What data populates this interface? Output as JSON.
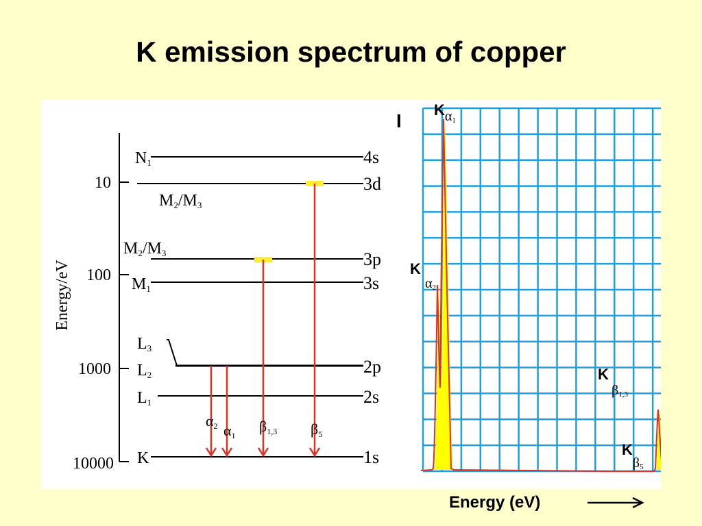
{
  "title": "K emission spectrum of copper",
  "energy_diagram": {
    "axis_label": "Energy/eV",
    "ticks": [
      "10",
      "100",
      "1000",
      "10000"
    ],
    "levels": [
      {
        "shell": "N",
        "sub": "1",
        "orbital": "4s"
      },
      {
        "shell": "M",
        "sub": "2",
        "shell2": "M",
        "sub2": "3",
        "orbital": "3d"
      },
      {
        "shell": "M",
        "sub": "2",
        "shell2": "M",
        "sub2": "3",
        "orbital": "3p"
      },
      {
        "shell": "M",
        "sub": "1",
        "orbital": "3s"
      },
      {
        "shell": "L",
        "sub": "3",
        "orbital": ""
      },
      {
        "shell": "L",
        "sub": "2",
        "orbital": "2p"
      },
      {
        "shell": "L",
        "sub": "1",
        "orbital": "2s"
      },
      {
        "shell": "K",
        "sub": "",
        "orbital": "1s"
      }
    ],
    "transitions": [
      {
        "greek": "α",
        "sub": "2",
        "from": "L2",
        "to": "K"
      },
      {
        "greek": "α",
        "sub": "1",
        "from": "L3",
        "to": "K"
      },
      {
        "greek": "β",
        "sub": "1,3",
        "from": "M2/M3",
        "to": "K"
      },
      {
        "greek": "β",
        "sub": "5",
        "from": "M2/M3",
        "to": "K"
      }
    ]
  },
  "spectrum": {
    "y_label": "I",
    "x_label": "Energy (eV)",
    "peaks": [
      {
        "letter": "K",
        "greek": "α",
        "sub": "1",
        "relative_intensity": 1.0
      },
      {
        "letter": "K",
        "greek": "α",
        "sub": "2",
        "relative_intensity": 0.5
      },
      {
        "letter": "K",
        "greek": "β",
        "sub": "1,3",
        "relative_intensity": 0.18
      },
      {
        "letter": "K",
        "greek": "β",
        "sub": "5",
        "relative_intensity": 0.02
      }
    ]
  },
  "colors": {
    "background": "#ffffcc",
    "grid": "#1e9fe0",
    "transition": "#e03020",
    "peak_fill": "#ffff00",
    "marker": "#ffee33"
  }
}
